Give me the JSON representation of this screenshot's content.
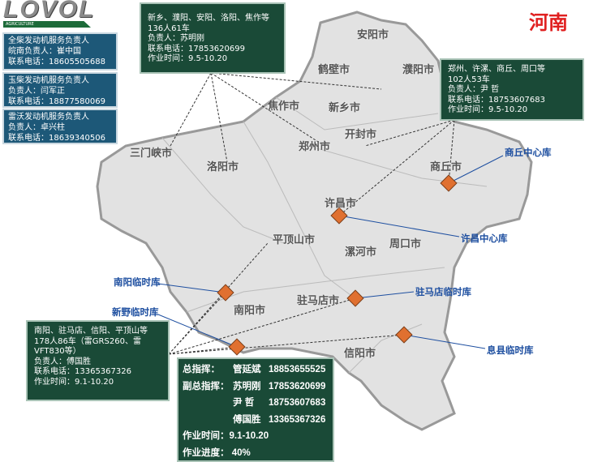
{
  "logo": {
    "brand": "LOVOL",
    "sub": "AGRICULTURE"
  },
  "title": "河南",
  "service_boxes": [
    {
      "title": "全柴发动机服务负责人",
      "person": "皖南负责人：崔中国",
      "phone": "联系电话：18605505688"
    },
    {
      "title": "玉柴发动机服务负责人",
      "person": "负责人：闫军正",
      "phone": "联系电话：18877580069"
    },
    {
      "title": "雷沃发动机服务负责人",
      "person": "负责人：卓兴柱",
      "phone": "联系电话：18639340506"
    }
  ],
  "teams": [
    {
      "area": "新乡、濮阳、安阳、洛阳、焦作等",
      "size": "136人61车",
      "person": "负责人：苏明刚",
      "phone": "联系电话：17853620699",
      "time": "作业时间：9.5-10.20"
    },
    {
      "area": "郑州、许漯、商丘、周口等",
      "size": "102人53车",
      "person": "负责人：尹  哲",
      "phone": "联系电话：18753607683",
      "time": "作业时间：9.5-10.20"
    },
    {
      "area": "南阳、驻马店、信阳、平顶山等",
      "size": "178人86车（雷GRS260、雷VFT830等）",
      "person": "负责人：傅国胜",
      "phone": "联系电话：13365367326",
      "time": "作业时间：9.1-10.20"
    }
  ],
  "command": {
    "chief_label": "总指挥：",
    "chief_name": "管延斌",
    "chief_phone": "18853655525",
    "deputy_label": "副总指挥：",
    "deputies": [
      {
        "name": "苏明刚",
        "phone": "17853620699"
      },
      {
        "name": "尹  哲",
        "phone": "18753607683"
      },
      {
        "name": "傅国胜",
        "phone": "13365367326"
      }
    ],
    "time": "作业时间：9.1-10.20",
    "progress_label": "作业进度：",
    "progress": "40%"
  },
  "warehouses": [
    "商丘中心库",
    "许昌中心库",
    "南阳临时库",
    "新野临时库",
    "驻马店临时库",
    "息县临时库"
  ],
  "cities": [
    "安阳市",
    "鹤壁市",
    "濮阳市",
    "新乡市",
    "焦作市",
    "郑州市",
    "开封市",
    "三门峡市",
    "洛阳市",
    "商丘市",
    "许昌市",
    "平顶山市",
    "漯河市",
    "周口市",
    "南阳市",
    "驻马店市",
    "信阳市"
  ],
  "colors": {
    "title": "#e02020",
    "warehouse_label": "#1e4fa0",
    "marker": "#e07030",
    "team_box": "#1a4a37",
    "service_box": "#1d5878"
  }
}
